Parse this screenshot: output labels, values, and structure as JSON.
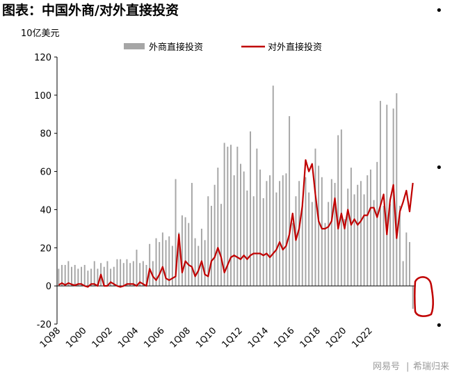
{
  "chart_data": {
    "type": "bar+line",
    "title": "图表：中国外商/对外直接投资",
    "unit": "10亿美元",
    "ylim": [
      -20,
      120
    ],
    "yticks": [
      -20,
      0,
      20,
      40,
      60,
      80,
      100,
      120
    ],
    "grid": false,
    "legend_position": "top",
    "xtick_labels": [
      "1Q98",
      "1Q00",
      "1Q02",
      "1Q04",
      "1Q06",
      "1Q08",
      "1Q10",
      "1Q12",
      "1Q14",
      "1Q16",
      "1Q18",
      "1Q20",
      "1Q22"
    ],
    "series": [
      {
        "name": "外商直接投资",
        "type": "bar",
        "color": "#a6a6a6",
        "values": [
          9,
          11,
          11,
          13,
          10,
          11,
          9,
          10,
          11,
          8,
          9,
          13,
          9,
          12,
          10,
          13,
          9,
          10,
          14,
          14,
          12,
          14,
          12,
          13,
          19,
          12,
          13,
          11,
          22,
          13,
          25,
          23,
          28,
          24,
          26,
          21,
          56,
          28,
          37,
          36,
          33,
          54,
          25,
          21,
          30,
          24,
          47,
          42,
          53,
          62,
          43,
          75,
          73,
          74,
          58,
          73,
          64,
          60,
          50,
          81,
          47,
          72,
          61,
          46,
          55,
          58,
          105,
          49,
          55,
          58,
          59,
          89,
          33,
          47,
          55,
          44,
          57,
          49,
          44,
          72,
          63,
          57,
          33,
          44,
          56,
          54,
          79,
          82,
          35,
          51,
          62,
          48,
          53,
          55,
          48,
          58,
          61,
          45,
          65,
          97,
          42,
          95,
          43,
          93,
          101,
          42,
          13,
          28,
          23,
          -12
        ]
      },
      {
        "name": "对外直接投资",
        "type": "line",
        "color": "#c00000",
        "values": [
          0.5,
          1.5,
          0.5,
          1.5,
          0.8,
          0.3,
          1,
          1,
          0,
          -0.5,
          1,
          1,
          0,
          6,
          0,
          0,
          2,
          1,
          0,
          -0.5,
          0,
          1,
          1,
          1,
          0,
          2,
          1,
          0,
          9,
          5,
          3,
          6,
          10,
          4,
          3,
          4,
          5,
          27,
          7,
          13,
          11,
          10,
          5,
          8,
          13,
          6,
          5,
          13,
          15,
          20,
          15,
          7,
          11,
          15,
          16,
          15,
          14,
          16,
          14,
          16,
          17,
          17,
          17,
          16,
          17,
          15,
          17,
          19,
          23,
          19,
          21,
          27,
          38,
          24,
          30,
          42,
          66,
          60,
          64,
          48,
          34,
          30,
          30,
          31,
          34,
          46,
          30,
          38,
          30,
          40,
          32,
          35,
          32,
          34,
          37,
          37,
          41,
          41,
          36,
          42,
          48,
          27,
          45,
          53,
          25,
          39,
          44,
          50,
          39,
          54
        ]
      }
    ]
  },
  "watermark": {
    "site": "网易号",
    "author": "希瑞归来"
  }
}
